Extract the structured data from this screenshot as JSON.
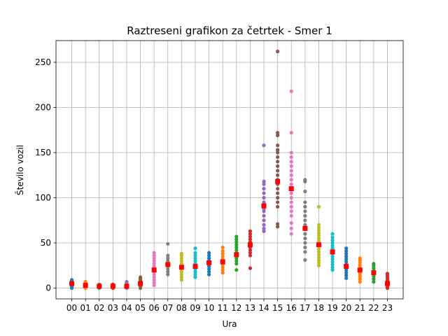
{
  "chart_data": {
    "type": "scatter",
    "title": "Raztreseni grafikon za četrtek - Smer 1",
    "xlabel": "Ura",
    "ylabel": "Število vozil",
    "categories": [
      "00",
      "01",
      "02",
      "03",
      "04",
      "05",
      "06",
      "07",
      "08",
      "09",
      "10",
      "11",
      "12",
      "13",
      "14",
      "15",
      "16",
      "17",
      "18",
      "19",
      "20",
      "21",
      "22",
      "23"
    ],
    "yticks": [
      0,
      50,
      100,
      150,
      200,
      250
    ],
    "ylim": [
      -12,
      274
    ],
    "grid": true,
    "series_colors": [
      "#1f77b4",
      "#ff7f0e",
      "#2ca02c",
      "#d62728",
      "#9467bd",
      "#8c564b",
      "#e377c2",
      "#7f7f7f",
      "#bcbd22",
      "#17becf"
    ],
    "mean_color": "#ff0000",
    "series": [
      {
        "values": [
          0,
          2,
          3,
          4,
          5,
          6,
          7,
          8,
          9
        ],
        "mean": 5
      },
      {
        "values": [
          0,
          1,
          2,
          3,
          4,
          5,
          6,
          7
        ],
        "mean": 3
      },
      {
        "values": [
          0,
          1,
          2,
          3,
          4
        ],
        "mean": 2
      },
      {
        "values": [
          0,
          1,
          2,
          3,
          4
        ],
        "mean": 2
      },
      {
        "values": [
          0,
          1,
          2,
          4,
          6,
          7
        ],
        "mean": 2
      },
      {
        "values": [
          0,
          2,
          4,
          6,
          8,
          10,
          11,
          12
        ],
        "mean": 5
      },
      {
        "values": [
          3,
          6,
          9,
          12,
          15,
          18,
          21,
          24,
          27,
          30,
          33,
          36,
          39
        ],
        "mean": 20
      },
      {
        "values": [
          15,
          18,
          21,
          24,
          27,
          30,
          33,
          36,
          49
        ],
        "mean": 26
      },
      {
        "values": [
          9,
          12,
          15,
          18,
          21,
          24,
          27,
          30,
          33,
          36,
          38
        ],
        "mean": 23
      },
      {
        "values": [
          12,
          15,
          18,
          21,
          24,
          27,
          30,
          33,
          36,
          39,
          44
        ],
        "mean": 24
      },
      {
        "values": [
          15,
          18,
          21,
          24,
          27,
          30,
          33,
          36,
          39
        ],
        "mean": 28
      },
      {
        "values": [
          17,
          20,
          23,
          26,
          29,
          32,
          35,
          38,
          41,
          45
        ],
        "mean": 29
      },
      {
        "values": [
          20,
          27,
          30,
          33,
          36,
          39,
          42,
          45,
          48,
          51,
          54,
          57
        ],
        "mean": 37
      },
      {
        "values": [
          22,
          36,
          39,
          42,
          45,
          48,
          51,
          54,
          57,
          60,
          63
        ],
        "mean": 48
      },
      {
        "values": [
          63,
          66,
          70,
          75,
          80,
          85,
          88,
          92,
          95,
          100,
          105,
          110,
          115,
          118,
          158
        ],
        "mean": 91
      },
      {
        "values": [
          68,
          71,
          90,
          95,
          100,
          105,
          110,
          115,
          120,
          125,
          130,
          135,
          140,
          145,
          150,
          153,
          158,
          169,
          172,
          262
        ],
        "mean": 118
      },
      {
        "values": [
          60,
          66,
          72,
          80,
          85,
          90,
          95,
          100,
          105,
          110,
          115,
          120,
          125,
          130,
          135,
          140,
          145,
          150,
          172,
          218
        ],
        "mean": 110
      },
      {
        "values": [
          31,
          40,
          45,
          50,
          55,
          60,
          65,
          70,
          75,
          80,
          85,
          90,
          95,
          107,
          118,
          120
        ],
        "mean": 66
      },
      {
        "values": [
          25,
          28,
          31,
          34,
          37,
          40,
          43,
          46,
          49,
          52,
          55,
          58,
          61,
          64,
          67,
          70,
          90
        ],
        "mean": 48
      },
      {
        "values": [
          20,
          23,
          26,
          29,
          32,
          35,
          38,
          41,
          44,
          47,
          50,
          53,
          56,
          60
        ],
        "mean": 40
      },
      {
        "values": [
          11,
          14,
          17,
          20,
          23,
          26,
          29,
          32,
          35,
          38,
          41,
          44
        ],
        "mean": 24
      },
      {
        "values": [
          7,
          10,
          13,
          16,
          19,
          22,
          25,
          28,
          31,
          33
        ],
        "mean": 20
      },
      {
        "values": [
          7,
          10,
          13,
          16,
          19,
          22,
          25,
          27
        ],
        "mean": 17
      },
      {
        "values": [
          0,
          2,
          4,
          6,
          8,
          10,
          12,
          14,
          16
        ],
        "mean": 5
      }
    ]
  }
}
